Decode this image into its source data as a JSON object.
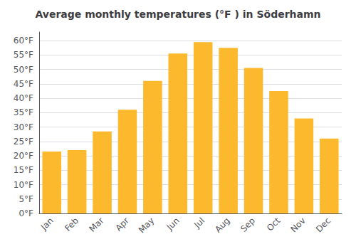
{
  "chart_data": {
    "type": "bar",
    "title": "Average monthly temperatures (°F ) in Söderhamn",
    "categories": [
      "Jan",
      "Feb",
      "Mar",
      "Apr",
      "May",
      "Jun",
      "Jul",
      "Aug",
      "Sep",
      "Oct",
      "Nov",
      "Dec"
    ],
    "values": [
      21.5,
      22.0,
      28.5,
      36.0,
      46.0,
      55.5,
      59.5,
      57.5,
      50.5,
      42.5,
      33.0,
      26.0
    ],
    "color": "#FDB92E",
    "ylim": [
      0,
      63
    ],
    "yticks": [
      {
        "value": 0,
        "label": "0°F"
      },
      {
        "value": 5,
        "label": "5°F"
      },
      {
        "value": 10,
        "label": "10°F"
      },
      {
        "value": 15,
        "label": "15°F"
      },
      {
        "value": 20,
        "label": "20°F"
      },
      {
        "value": 25,
        "label": "25°F"
      },
      {
        "value": 30,
        "label": "30°F"
      },
      {
        "value": 35,
        "label": "35°F"
      },
      {
        "value": 40,
        "label": "40°F"
      },
      {
        "value": 45,
        "label": "45°F"
      },
      {
        "value": 50,
        "label": "50°F"
      },
      {
        "value": 55,
        "label": "55°F"
      },
      {
        "value": 60,
        "label": "60°F"
      }
    ],
    "grid": true
  }
}
